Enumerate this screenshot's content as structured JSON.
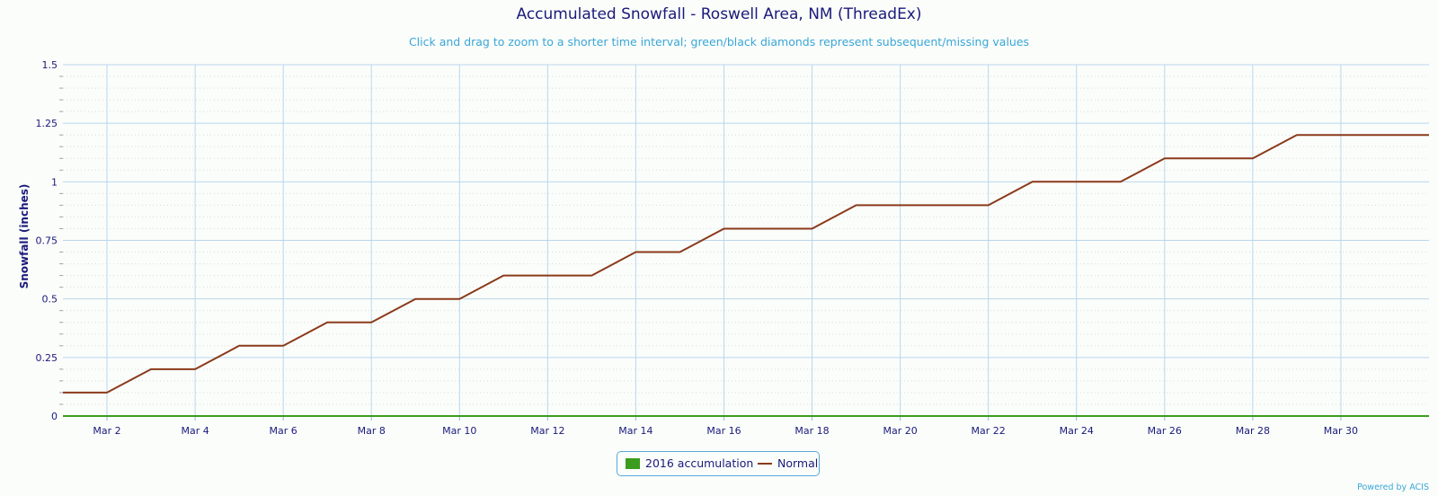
{
  "chart_data": {
    "type": "line",
    "title": "Accumulated Snowfall - Roswell Area, NM (ThreadEx)",
    "subtitle": "Click and drag to zoom to a shorter time interval; green/black diamonds represent subsequent/missing values",
    "ylabel": "Snowfall (inches)",
    "xlabel": "",
    "ylim": [
      0,
      1.5
    ],
    "yticks": [
      "0",
      "0.25",
      "0.5",
      "0.75",
      "1",
      "1.25",
      "1.5"
    ],
    "xlim": [
      1,
      32
    ],
    "xticks": [
      "Mar 2",
      "Mar 4",
      "Mar 6",
      "Mar 8",
      "Mar 10",
      "Mar 12",
      "Mar 14",
      "Mar 16",
      "Mar 18",
      "Mar 20",
      "Mar 22",
      "Mar 24",
      "Mar 26",
      "Mar 28",
      "Mar 30"
    ],
    "grid": true,
    "legend": "bottom-center",
    "series": [
      {
        "name": "2016 accumulation",
        "color": "#3c9c1e",
        "days": [
          1,
          32
        ],
        "values": [
          0,
          0
        ]
      },
      {
        "name": "Normal",
        "color": "#8b3a1a",
        "days": [
          1,
          2,
          3,
          4,
          5,
          6,
          7,
          8,
          9,
          10,
          11,
          12,
          13,
          14,
          15,
          16,
          17,
          18,
          19,
          20,
          21,
          22,
          23,
          24,
          25,
          26,
          27,
          28,
          29,
          30,
          31,
          32
        ],
        "values": [
          0.1,
          0.1,
          0.2,
          0.2,
          0.3,
          0.3,
          0.4,
          0.4,
          0.5,
          0.5,
          0.6,
          0.6,
          0.6,
          0.7,
          0.7,
          0.8,
          0.8,
          0.8,
          0.9,
          0.9,
          0.9,
          0.9,
          1.0,
          1.0,
          1.0,
          1.1,
          1.1,
          1.1,
          1.2,
          1.2,
          1.2,
          1.2
        ]
      }
    ]
  },
  "credit": "Powered by ACIS"
}
